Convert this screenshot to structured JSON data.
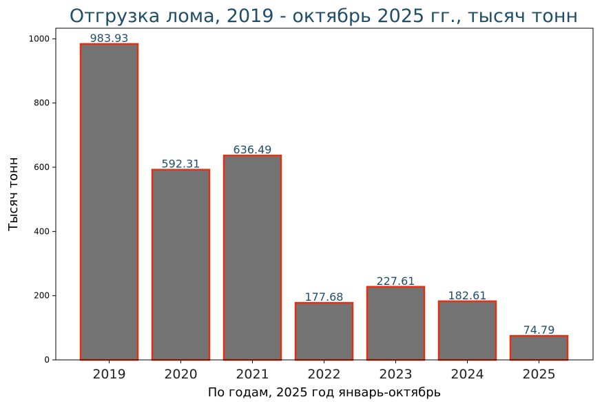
{
  "chart_data": {
    "type": "bar",
    "title": "Отгрузка лома, 2019 - октябрь 2025 гг., тысяч тонн",
    "xlabel": "По годам, 2025 год январь-октябрь",
    "ylabel": "Тысяч тонн",
    "categories": [
      "2019",
      "2020",
      "2021",
      "2022",
      "2023",
      "2024",
      "2025"
    ],
    "values": [
      983.93,
      592.31,
      636.49,
      177.68,
      227.61,
      182.61,
      74.79
    ],
    "value_labels": [
      "983.93",
      "592.31",
      "636.49",
      "177.68",
      "227.61",
      "182.61",
      "74.79"
    ],
    "yticks": [
      "0",
      "200",
      "400",
      "600",
      "800",
      "1000"
    ],
    "ylim": [
      0,
      1033
    ],
    "grid": false,
    "legend": "none",
    "colors": {
      "bar_fill": "#737373",
      "bar_edge": "#e83010",
      "title": "#1f4e6b",
      "data_label": "#1f4e6b"
    }
  }
}
